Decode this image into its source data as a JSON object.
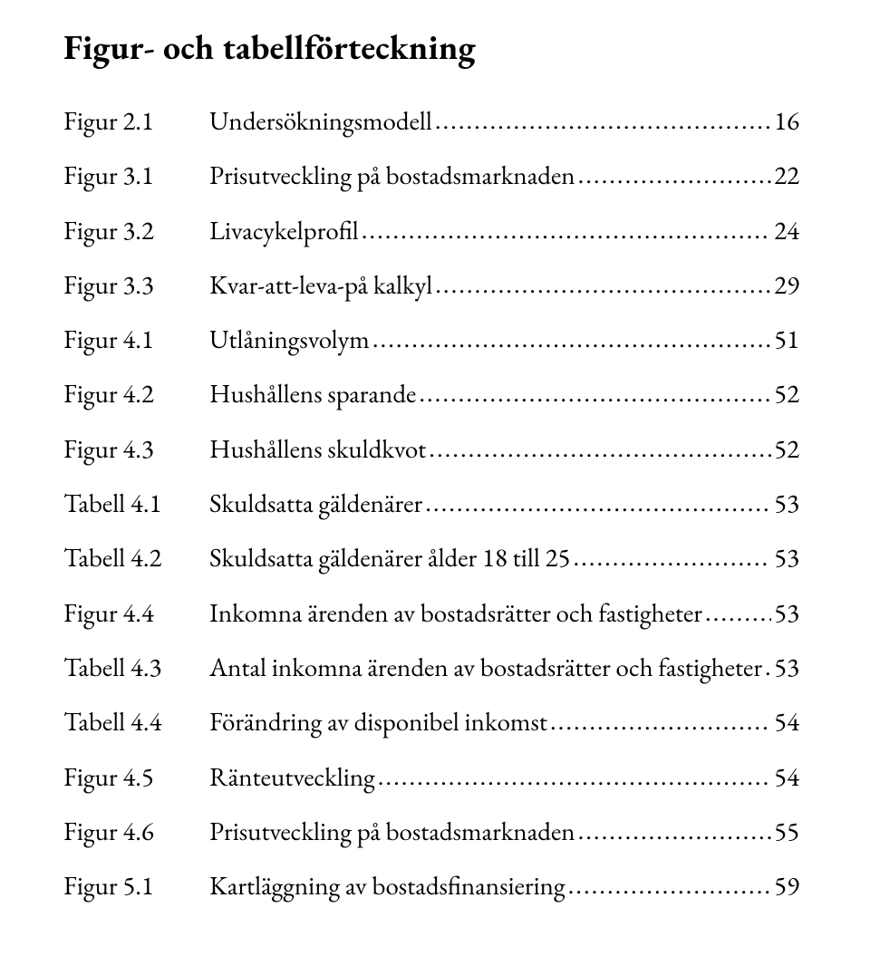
{
  "title": "Figur- och tabellförteckning",
  "entries": [
    {
      "label": "Figur 2.1",
      "desc": "Undersökningsmodell",
      "page": "16"
    },
    {
      "label": "Figur 3.1",
      "desc": "Prisutveckling på bostadsmarknaden",
      "page": "22"
    },
    {
      "label": "Figur 3.2",
      "desc": "Livacykelprofil",
      "page": "24"
    },
    {
      "label": "Figur 3.3",
      "desc": "Kvar-att-leva-på kalkyl",
      "page": "29"
    },
    {
      "label": "Figur 4.1",
      "desc": "Utlåningsvolym",
      "page": "51"
    },
    {
      "label": "Figur 4.2",
      "desc": "Hushållens sparande",
      "page": "52"
    },
    {
      "label": "Figur 4.3",
      "desc": "Hushållens skuldkvot",
      "page": "52"
    },
    {
      "label": "Tabell 4.1",
      "desc": "Skuldsatta gäldenärer",
      "page": "53"
    },
    {
      "label": "Tabell 4.2",
      "desc": "Skuldsatta gäldenärer ålder 18 till 25",
      "page": "53"
    },
    {
      "label": "Figur 4.4",
      "desc": "Inkomna ärenden av bostadsrätter och fastigheter",
      "page": "53"
    },
    {
      "label": "Tabell 4.3",
      "desc": "Antal inkomna ärenden av bostadsrätter och fastigheter",
      "page": "53"
    },
    {
      "label": "Tabell 4.4",
      "desc": "Förändring av disponibel inkomst",
      "page": "54"
    },
    {
      "label": "Figur 4.5",
      "desc": "Ränteutveckling",
      "page": "54"
    },
    {
      "label": "Figur 4.6",
      "desc": "Prisutveckling på bostadsmarknaden",
      "page": "55"
    },
    {
      "label": "Figur 5.1",
      "desc": "Kartläggning av bostadsfinansiering",
      "page": "59"
    }
  ]
}
